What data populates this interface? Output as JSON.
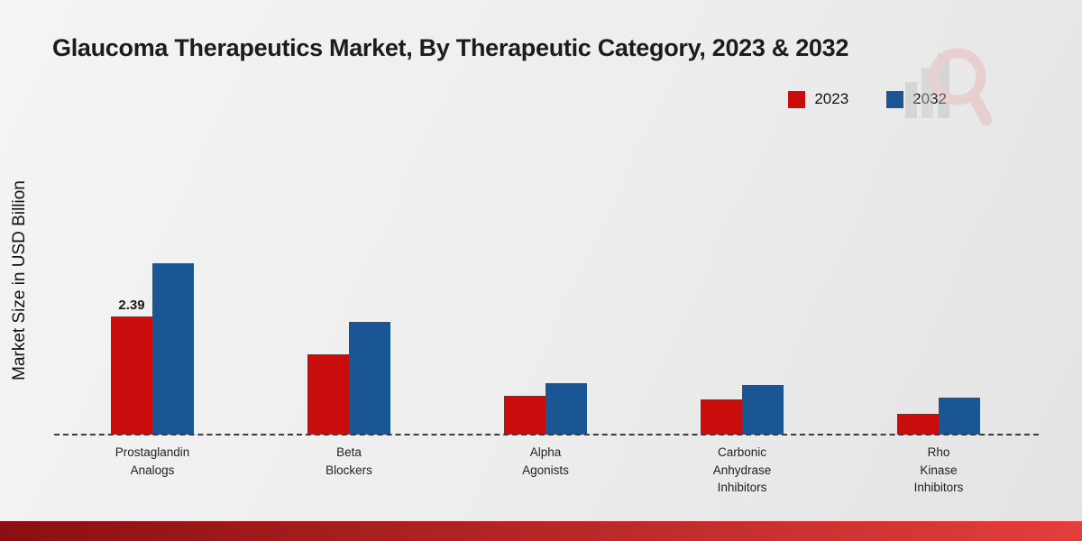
{
  "chart_data": {
    "type": "bar",
    "title": "Glaucoma Therapeutics Market, By Therapeutic Category, 2023 & 2032",
    "ylabel": "Market Size in USD Billion",
    "xlabel": "",
    "categories": [
      "Prostaglandin Analogs",
      "Beta Blockers",
      "Alpha Agonists",
      "Carbonic Anhydrase Inhibitors",
      "Rho Kinase Inhibitors"
    ],
    "category_labels_multiline": [
      "Prostaglandin\nAnalogs",
      "Beta\nBlockers",
      "Alpha\nAgonists",
      "Carbonic\nAnhydrase\nInhibitors",
      "Rho\nKinase\nInhibitors"
    ],
    "series": [
      {
        "name": "2023",
        "color": "#c90c0c",
        "values": [
          2.39,
          1.62,
          0.78,
          0.7,
          0.42
        ]
      },
      {
        "name": "2032",
        "color": "#1a5693",
        "values": [
          3.45,
          2.28,
          1.04,
          1.0,
          0.75
        ]
      }
    ],
    "value_labels": [
      {
        "category_index": 0,
        "series_index": 0,
        "text": "2.39"
      }
    ],
    "ylim": [
      0,
      3.6
    ],
    "grid": false,
    "legend_position": "top-right",
    "baseline_style": "dashed"
  },
  "footer": {
    "accent_bar_colors": [
      "#8a0f12",
      "#e23e3c"
    ]
  }
}
